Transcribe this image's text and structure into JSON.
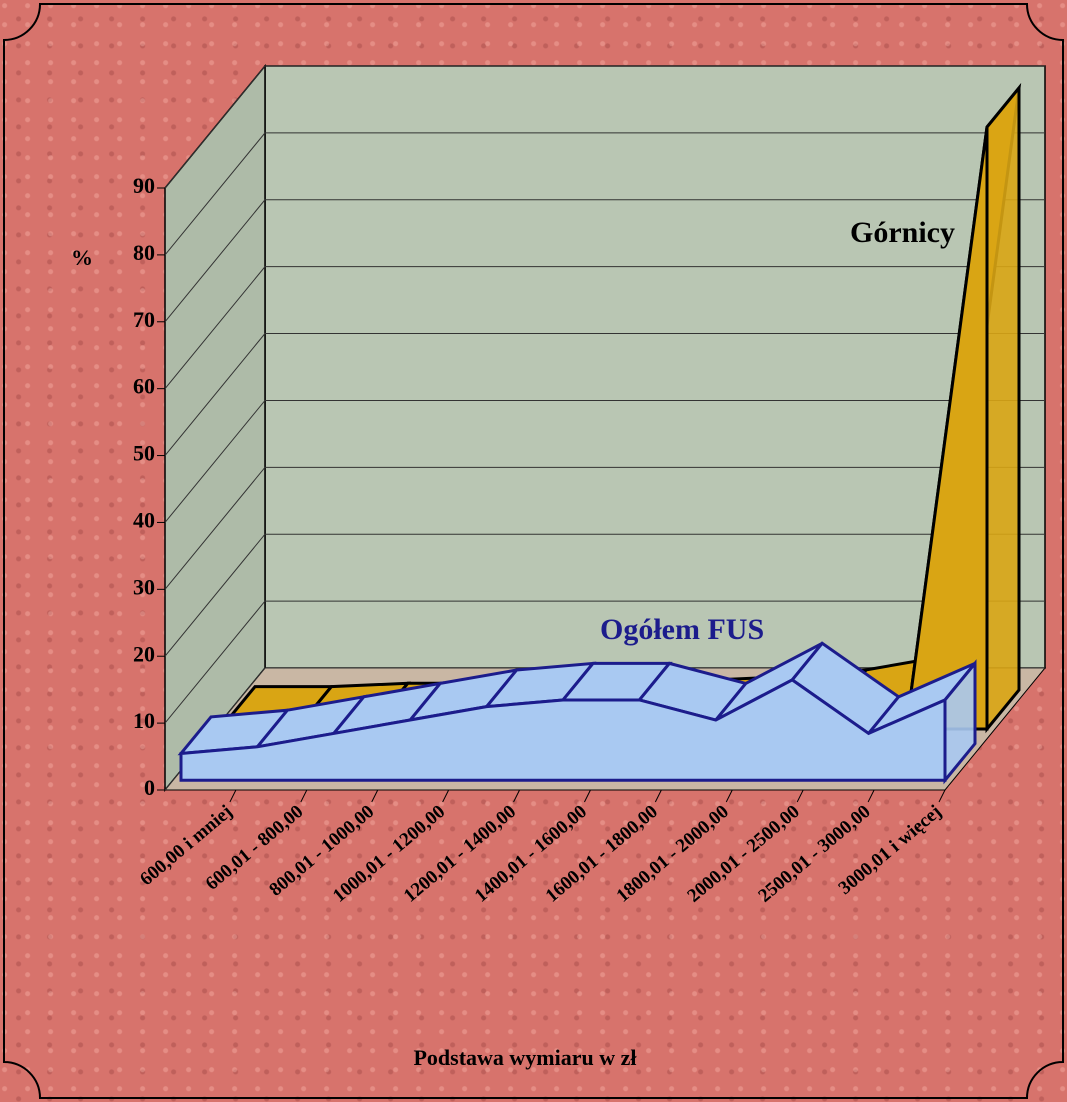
{
  "chart_data": {
    "type": "area3d",
    "y_label": "%",
    "x_label": "Podstawa wymiaru w zł",
    "categories": [
      "600,00 i mniej",
      "600,01 - 800,00",
      "800,01 - 1000,00",
      "1000,01 - 1200,00",
      "1200,01 - 1400,00",
      "1400,01 - 1600,00",
      "1600,01 - 1800,00",
      "1800,01 - 2000,00",
      "2000,01 - 2500,00",
      "2500,01 - 3000,00",
      "3000,01 i więcej"
    ],
    "series": [
      {
        "name": "Ogółem FUS",
        "color": "#a9c9f2",
        "values": [
          4,
          5,
          7,
          9,
          11,
          12,
          12,
          9,
          15,
          7,
          12
        ]
      },
      {
        "name": "Górnicy",
        "color": "#d9a514",
        "values": [
          0.5,
          0.5,
          1,
          1,
          1,
          1.5,
          1.5,
          2,
          3,
          5,
          90
        ]
      }
    ],
    "ylim": [
      0,
      90
    ],
    "yticks": [
      0,
      10,
      20,
      30,
      40,
      50,
      60,
      70,
      80,
      90
    ],
    "grid": true
  }
}
